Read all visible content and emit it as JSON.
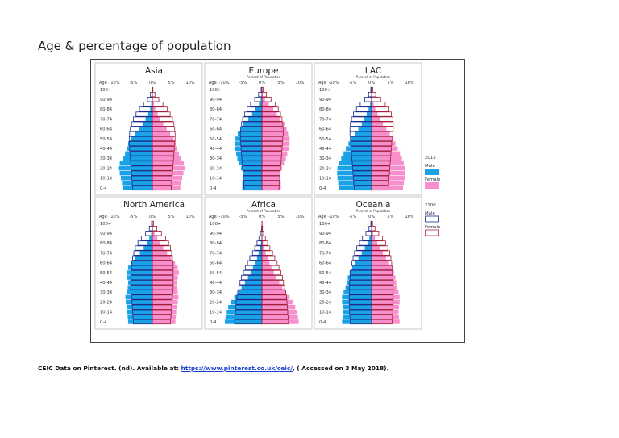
{
  "page": {
    "heading": "Age & percentage of population",
    "citation": {
      "prefix": "CEIC Data on Pinterest. (nd). Available at: ",
      "link": "https://www.pinterest.co.uk/ceic/",
      "suffix": ", ( Accessed on 3 May 2018)."
    }
  },
  "chart_data": [
    {
      "type": "bar",
      "subtype": "population-pyramid",
      "title": "Asia",
      "subtitle": "",
      "age_label": "Age",
      "xticks": [
        "-10%",
        "-5%",
        "0%",
        "5%",
        "10%"
      ],
      "xlim": [
        -10,
        10
      ],
      "age_groups": [
        "0-4",
        "5-9",
        "10-14",
        "15-19",
        "20-24",
        "25-29",
        "30-34",
        "35-39",
        "40-44",
        "45-49",
        "50-54",
        "55-59",
        "60-64",
        "65-69",
        "70-74",
        "75-79",
        "80-84",
        "85-89",
        "90-94",
        "95-99",
        "100+"
      ],
      "yticks": [
        "0-4",
        "10-14",
        "20-24",
        "30-34",
        "40-44",
        "50-54",
        "60-64",
        "70-74",
        "80-84",
        "90-94",
        "100+"
      ],
      "series": [
        {
          "name": "2015 Male",
          "values": [
            -7.8,
            -8.0,
            -8.3,
            -8.6,
            -8.8,
            -8.6,
            -7.8,
            -7.2,
            -6.8,
            -6.4,
            -5.6,
            -4.6,
            -3.6,
            -2.6,
            -1.8,
            -1.1,
            -0.6,
            -0.3,
            -0.1,
            0,
            0
          ]
        },
        {
          "name": "2015 Female",
          "values": [
            7.4,
            7.6,
            7.9,
            8.2,
            8.5,
            8.3,
            7.6,
            7.0,
            6.6,
            6.2,
            5.6,
            4.7,
            3.8,
            2.9,
            2.1,
            1.4,
            0.8,
            0.4,
            0.15,
            0,
            0
          ]
        },
        {
          "name": "2100 Male",
          "values": [
            -5.2,
            -5.3,
            -5.4,
            -5.5,
            -5.6,
            -5.7,
            -5.8,
            -5.9,
            -6.0,
            -6.1,
            -6.1,
            -6.0,
            -5.8,
            -5.5,
            -5.0,
            -4.3,
            -3.4,
            -2.3,
            -1.3,
            -0.5,
            -0.1
          ]
        },
        {
          "name": "2100 Female",
          "values": [
            5.0,
            5.1,
            5.2,
            5.3,
            5.4,
            5.5,
            5.6,
            5.7,
            5.8,
            5.9,
            6.0,
            6.0,
            5.9,
            5.7,
            5.3,
            4.7,
            3.9,
            2.8,
            1.7,
            0.7,
            0.15
          ]
        }
      ]
    },
    {
      "type": "bar",
      "subtype": "population-pyramid",
      "title": "Europe",
      "subtitle": "Percent of Population",
      "age_label": "Age",
      "xticks": [
        "-10%",
        "-5%",
        "0%",
        "5%",
        "10%"
      ],
      "xlim": [
        -10,
        10
      ],
      "age_groups": [
        "0-4",
        "5-9",
        "10-14",
        "15-19",
        "20-24",
        "25-29",
        "30-34",
        "35-39",
        "40-44",
        "45-49",
        "50-54",
        "55-59",
        "60-64",
        "65-69",
        "70-74",
        "75-79",
        "80-84",
        "85-89",
        "90-94",
        "95-99",
        "100+"
      ],
      "yticks": [
        "0-4",
        "10-14",
        "20-24",
        "30-34",
        "40-44",
        "50-54",
        "60-64",
        "70-74",
        "80-84",
        "90-94",
        "100+"
      ],
      "series": [
        {
          "name": "2015 Male",
          "values": [
            -5.2,
            -5.2,
            -5.0,
            -5.1,
            -5.5,
            -6.0,
            -6.5,
            -6.8,
            -7.1,
            -7.2,
            -7.0,
            -6.4,
            -5.7,
            -4.9,
            -3.6,
            -2.6,
            -1.7,
            -0.8,
            -0.3,
            -0.1,
            0
          ]
        },
        {
          "name": "2015 Female",
          "values": [
            5.0,
            5.0,
            4.8,
            4.9,
            5.3,
            5.8,
            6.3,
            6.7,
            7.1,
            7.3,
            7.3,
            6.9,
            6.5,
            5.9,
            4.8,
            3.9,
            3.0,
            1.8,
            0.8,
            0.2,
            0
          ]
        },
        {
          "name": "2100 Male",
          "values": [
            -4.7,
            -4.8,
            -4.9,
            -5.0,
            -5.1,
            -5.2,
            -5.3,
            -5.4,
            -5.5,
            -5.6,
            -5.7,
            -5.7,
            -5.6,
            -5.4,
            -5.1,
            -4.6,
            -3.9,
            -3.0,
            -1.9,
            -0.9,
            -0.2
          ]
        },
        {
          "name": "2100 Female",
          "values": [
            4.5,
            4.6,
            4.7,
            4.8,
            4.9,
            5.0,
            5.1,
            5.2,
            5.3,
            5.4,
            5.5,
            5.6,
            5.6,
            5.5,
            5.3,
            4.9,
            4.3,
            3.5,
            2.4,
            1.2,
            0.3
          ]
        }
      ]
    },
    {
      "type": "bar",
      "subtype": "population-pyramid",
      "title": "LAC",
      "subtitle": "Percent of Population",
      "age_label": "Age",
      "xticks": [
        "-10%",
        "-5%",
        "0%",
        "5%",
        "10%"
      ],
      "xlim": [
        -10,
        10
      ],
      "age_groups": [
        "0-4",
        "5-9",
        "10-14",
        "15-19",
        "20-24",
        "25-29",
        "30-34",
        "35-39",
        "40-44",
        "45-49",
        "50-54",
        "55-59",
        "60-64",
        "65-69",
        "70-74",
        "75-79",
        "80-84",
        "85-89",
        "90-94",
        "95-99",
        "100+"
      ],
      "yticks": [
        "0-4",
        "10-14",
        "20-24",
        "30-34",
        "40-44",
        "50-54",
        "60-64",
        "70-74",
        "80-84",
        "90-94",
        "100+"
      ],
      "series": [
        {
          "name": "2015 Male",
          "values": [
            -8.6,
            -8.8,
            -9.0,
            -9.1,
            -9.0,
            -8.6,
            -8.0,
            -7.4,
            -6.8,
            -6.1,
            -5.3,
            -4.4,
            -3.5,
            -2.6,
            -1.9,
            -1.3,
            -0.8,
            -0.4,
            -0.15,
            0,
            0
          ]
        },
        {
          "name": "2015 Female",
          "values": [
            8.3,
            8.5,
            8.7,
            8.8,
            8.8,
            8.5,
            8.0,
            7.5,
            6.9,
            6.3,
            5.6,
            4.8,
            3.9,
            3.0,
            2.3,
            1.6,
            1.0,
            0.55,
            0.2,
            0,
            0
          ]
        },
        {
          "name": "2100 Male",
          "values": [
            -4.6,
            -4.7,
            -4.8,
            -4.9,
            -5.0,
            -5.1,
            -5.2,
            -5.3,
            -5.4,
            -5.5,
            -5.6,
            -5.7,
            -5.7,
            -5.6,
            -5.3,
            -4.8,
            -4.0,
            -3.0,
            -1.8,
            -0.8,
            -0.2
          ]
        },
        {
          "name": "2100 Female",
          "values": [
            4.4,
            4.5,
            4.6,
            4.7,
            4.8,
            4.9,
            5.0,
            5.1,
            5.2,
            5.3,
            5.5,
            5.6,
            5.7,
            5.7,
            5.6,
            5.2,
            4.6,
            3.6,
            2.4,
            1.1,
            0.3
          ]
        }
      ]
    },
    {
      "type": "bar",
      "subtype": "population-pyramid",
      "title": "North America",
      "subtitle": "",
      "age_label": "Age",
      "xticks": [
        "-10%",
        "-5%",
        "0%",
        "5%",
        "10%"
      ],
      "xlim": [
        -10,
        10
      ],
      "age_groups": [
        "0-4",
        "5-9",
        "10-14",
        "15-19",
        "20-24",
        "25-29",
        "30-34",
        "35-39",
        "40-44",
        "45-49",
        "50-54",
        "55-59",
        "60-64",
        "65-69",
        "70-74",
        "75-79",
        "80-84",
        "85-89",
        "90-94",
        "95-99",
        "100+"
      ],
      "yticks": [
        "0-4",
        "10-14",
        "20-24",
        "30-34",
        "40-44",
        "50-54",
        "60-64",
        "70-74",
        "80-84",
        "90-94",
        "100+"
      ],
      "series": [
        {
          "name": "2015 Male",
          "values": [
            -6.4,
            -6.5,
            -6.6,
            -6.8,
            -7.0,
            -7.1,
            -6.8,
            -6.5,
            -6.4,
            -6.6,
            -6.8,
            -6.4,
            -5.6,
            -4.5,
            -3.3,
            -2.3,
            -1.5,
            -0.8,
            -0.3,
            -0.1,
            0
          ]
        },
        {
          "name": "2015 Female",
          "values": [
            6.1,
            6.2,
            6.3,
            6.5,
            6.7,
            6.9,
            6.7,
            6.5,
            6.4,
            6.7,
            7.0,
            6.7,
            6.0,
            5.0,
            3.9,
            2.9,
            2.1,
            1.3,
            0.6,
            0.15,
            0
          ]
        },
        {
          "name": "2100 Male",
          "values": [
            -5.0,
            -5.1,
            -5.2,
            -5.3,
            -5.4,
            -5.5,
            -5.6,
            -5.7,
            -5.7,
            -5.7,
            -5.6,
            -5.5,
            -5.4,
            -5.2,
            -4.9,
            -4.5,
            -3.8,
            -2.9,
            -1.8,
            -0.8,
            -0.2
          ]
        },
        {
          "name": "2100 Female",
          "values": [
            4.8,
            4.9,
            5.0,
            5.1,
            5.2,
            5.3,
            5.4,
            5.5,
            5.5,
            5.5,
            5.5,
            5.5,
            5.4,
            5.3,
            5.1,
            4.8,
            4.3,
            3.5,
            2.4,
            1.2,
            0.3
          ]
        }
      ]
    },
    {
      "type": "bar",
      "subtype": "population-pyramid",
      "title": "Africa",
      "subtitle": "Percent of Population",
      "age_label": "Age",
      "xticks": [
        "-10%",
        "-5%",
        "0%",
        "5%",
        "10%"
      ],
      "xlim": [
        -10,
        10
      ],
      "age_groups": [
        "0-4",
        "5-9",
        "10-14",
        "15-19",
        "20-24",
        "25-29",
        "30-34",
        "35-39",
        "40-44",
        "45-49",
        "50-54",
        "55-59",
        "60-64",
        "65-69",
        "70-74",
        "75-79",
        "80-84",
        "85-89",
        "90-94",
        "95-99",
        "100+"
      ],
      "yticks": [
        "0-4",
        "10-14",
        "20-24",
        "30-34",
        "40-44",
        "50-54",
        "60-64",
        "70-74",
        "80-84",
        "90-94",
        "100+"
      ],
      "series": [
        {
          "name": "2015 Male",
          "values": [
            -9.8,
            -9.6,
            -9.3,
            -8.9,
            -8.2,
            -7.3,
            -6.3,
            -5.4,
            -4.5,
            -3.7,
            -3.0,
            -2.4,
            -1.8,
            -1.3,
            -0.9,
            -0.5,
            -0.25,
            -0.1,
            0,
            0,
            0
          ]
        },
        {
          "name": "2015 Female",
          "values": [
            9.7,
            9.5,
            9.2,
            8.8,
            8.2,
            7.3,
            6.3,
            5.4,
            4.6,
            3.8,
            3.1,
            2.5,
            2.0,
            1.5,
            1.0,
            0.6,
            0.3,
            0.1,
            0,
            0,
            0
          ]
        },
        {
          "name": "2100 Male",
          "values": [
            -7.2,
            -7.1,
            -7.0,
            -6.9,
            -6.8,
            -6.6,
            -6.4,
            -6.1,
            -5.8,
            -5.4,
            -4.9,
            -4.4,
            -3.8,
            -3.2,
            -2.5,
            -1.9,
            -1.3,
            -0.8,
            -0.4,
            -0.1,
            0
          ]
        },
        {
          "name": "2100 Female",
          "values": [
            7.0,
            6.9,
            6.8,
            6.7,
            6.6,
            6.5,
            6.3,
            6.0,
            5.7,
            5.4,
            5.0,
            4.5,
            4.0,
            3.4,
            2.8,
            2.1,
            1.5,
            0.9,
            0.45,
            0.15,
            0.05
          ]
        }
      ]
    },
    {
      "type": "bar",
      "subtype": "population-pyramid",
      "title": "Oceania",
      "subtitle": "Percent of Population",
      "age_label": "Age",
      "xticks": [
        "-10%",
        "-5%",
        "0%",
        "5%",
        "10%"
      ],
      "xlim": [
        -10,
        10
      ],
      "age_groups": [
        "0-4",
        "5-9",
        "10-14",
        "15-19",
        "20-24",
        "25-29",
        "30-34",
        "35-39",
        "40-44",
        "45-49",
        "50-54",
        "55-59",
        "60-64",
        "65-69",
        "70-74",
        "75-79",
        "80-84",
        "85-89",
        "90-94",
        "95-99",
        "100+"
      ],
      "yticks": [
        "0-4",
        "10-14",
        "20-24",
        "30-34",
        "40-44",
        "50-54",
        "60-64",
        "70-74",
        "80-84",
        "90-94",
        "100+"
      ],
      "series": [
        {
          "name": "2015 Male",
          "values": [
            -7.8,
            -7.6,
            -7.5,
            -7.6,
            -7.8,
            -7.8,
            -7.4,
            -6.9,
            -6.6,
            -6.3,
            -5.8,
            -5.1,
            -4.3,
            -3.5,
            -2.6,
            -1.8,
            -1.1,
            -0.6,
            -0.2,
            -0.05,
            0
          ]
        },
        {
          "name": "2015 Female",
          "values": [
            7.4,
            7.2,
            7.1,
            7.2,
            7.4,
            7.4,
            7.1,
            6.7,
            6.5,
            6.3,
            5.9,
            5.3,
            4.6,
            3.8,
            3.0,
            2.2,
            1.5,
            0.9,
            0.4,
            0.1,
            0
          ]
        },
        {
          "name": "2100 Male",
          "values": [
            -5.6,
            -5.7,
            -5.8,
            -5.8,
            -5.9,
            -5.9,
            -5.9,
            -5.9,
            -5.8,
            -5.7,
            -5.6,
            -5.4,
            -5.2,
            -4.9,
            -4.5,
            -3.9,
            -3.2,
            -2.4,
            -1.5,
            -0.7,
            -0.2
          ]
        },
        {
          "name": "2100 Female",
          "values": [
            5.4,
            5.5,
            5.6,
            5.6,
            5.7,
            5.7,
            5.7,
            5.7,
            5.7,
            5.6,
            5.5,
            5.4,
            5.3,
            5.1,
            4.8,
            4.3,
            3.7,
            2.9,
            1.9,
            0.9,
            0.25
          ]
        }
      ]
    }
  ],
  "legend": {
    "groups": [
      {
        "year": "2015",
        "items": [
          {
            "label": "Male",
            "style": "filled",
            "color": "#19a3e6"
          },
          {
            "label": "Female",
            "style": "filled",
            "color": "#f78fcd"
          }
        ]
      },
      {
        "year": "2100",
        "items": [
          {
            "label": "Male",
            "style": "outline",
            "color": "#1a2a8c"
          },
          {
            "label": "Female",
            "style": "outline",
            "color": "#b0203a"
          }
        ]
      }
    ]
  },
  "colors": {
    "male_fill": "#19a3e6",
    "female_fill": "#f78fcd",
    "male_outline": "#1a2a8c",
    "female_outline": "#a31c38",
    "panel_border": "#c8c8c8"
  }
}
